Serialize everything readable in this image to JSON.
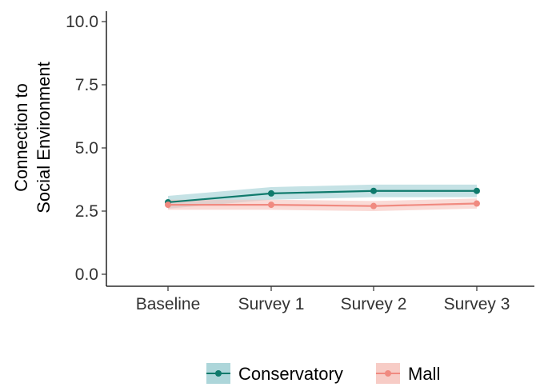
{
  "chart_data": {
    "type": "line",
    "title": "",
    "xlabel": "",
    "ylabel": [
      "Connection to",
      "Social Environment"
    ],
    "categories": [
      "Baseline",
      "Survey 1",
      "Survey 2",
      "Survey 3"
    ],
    "ylim": [
      0,
      10
    ],
    "yticks": [
      "0.0",
      "2.5",
      "5.0",
      "7.5",
      "10.0"
    ],
    "grid": false,
    "legend_position": "bottom",
    "series": [
      {
        "name": "Conservatory",
        "color": "#0f7a6c",
        "ribbon_color": "#9fcfd3",
        "values": [
          2.85,
          3.2,
          3.3,
          3.3
        ],
        "lower": [
          2.6,
          2.95,
          3.05,
          3.05
        ],
        "upper": [
          3.1,
          3.45,
          3.55,
          3.55
        ]
      },
      {
        "name": "Mall",
        "color": "#f08a80",
        "ribbon_color": "#f6c3bc",
        "values": [
          2.75,
          2.75,
          2.7,
          2.8
        ],
        "lower": [
          2.55,
          2.55,
          2.5,
          2.6
        ],
        "upper": [
          2.95,
          2.95,
          2.9,
          3.0
        ]
      }
    ]
  }
}
